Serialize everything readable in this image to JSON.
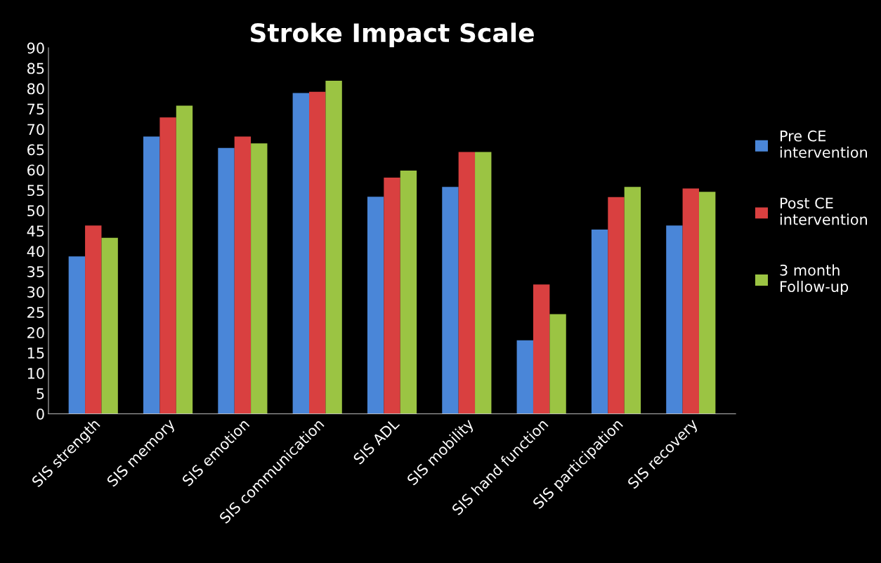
{
  "chart_data": {
    "type": "bar",
    "title": "Stroke Impact Scale",
    "categories": [
      "SIS strength",
      "SIS memory",
      "SIS emotion",
      "SIS communication",
      "SIS ADL",
      "SIS mobility",
      "SIS hand function",
      "SIS participation",
      "SIS recovery"
    ],
    "series": [
      {
        "name": "Pre CE\nintervention",
        "color": "#4a86d8",
        "values": [
          38.7,
          68.2,
          65.4,
          78.9,
          53.4,
          55.8,
          18.1,
          45.3,
          46.3
        ]
      },
      {
        "name": "Post CE\nintervention",
        "color": "#d94040",
        "values": [
          46.3,
          72.9,
          68.2,
          79.2,
          58.1,
          64.4,
          31.8,
          53.3,
          55.4
        ]
      },
      {
        "name": "3 month\nFollow-up",
        "color": "#9bc443",
        "values": [
          43.3,
          75.8,
          66.5,
          81.9,
          59.8,
          64.4,
          24.5,
          55.8,
          54.6
        ]
      }
    ],
    "ylim": [
      0,
      90
    ],
    "yticks": [
      0,
      5,
      10,
      15,
      20,
      25,
      30,
      35,
      40,
      45,
      50,
      55,
      60,
      65,
      70,
      75,
      80,
      85,
      90
    ],
    "grid": false,
    "legend": "right"
  }
}
